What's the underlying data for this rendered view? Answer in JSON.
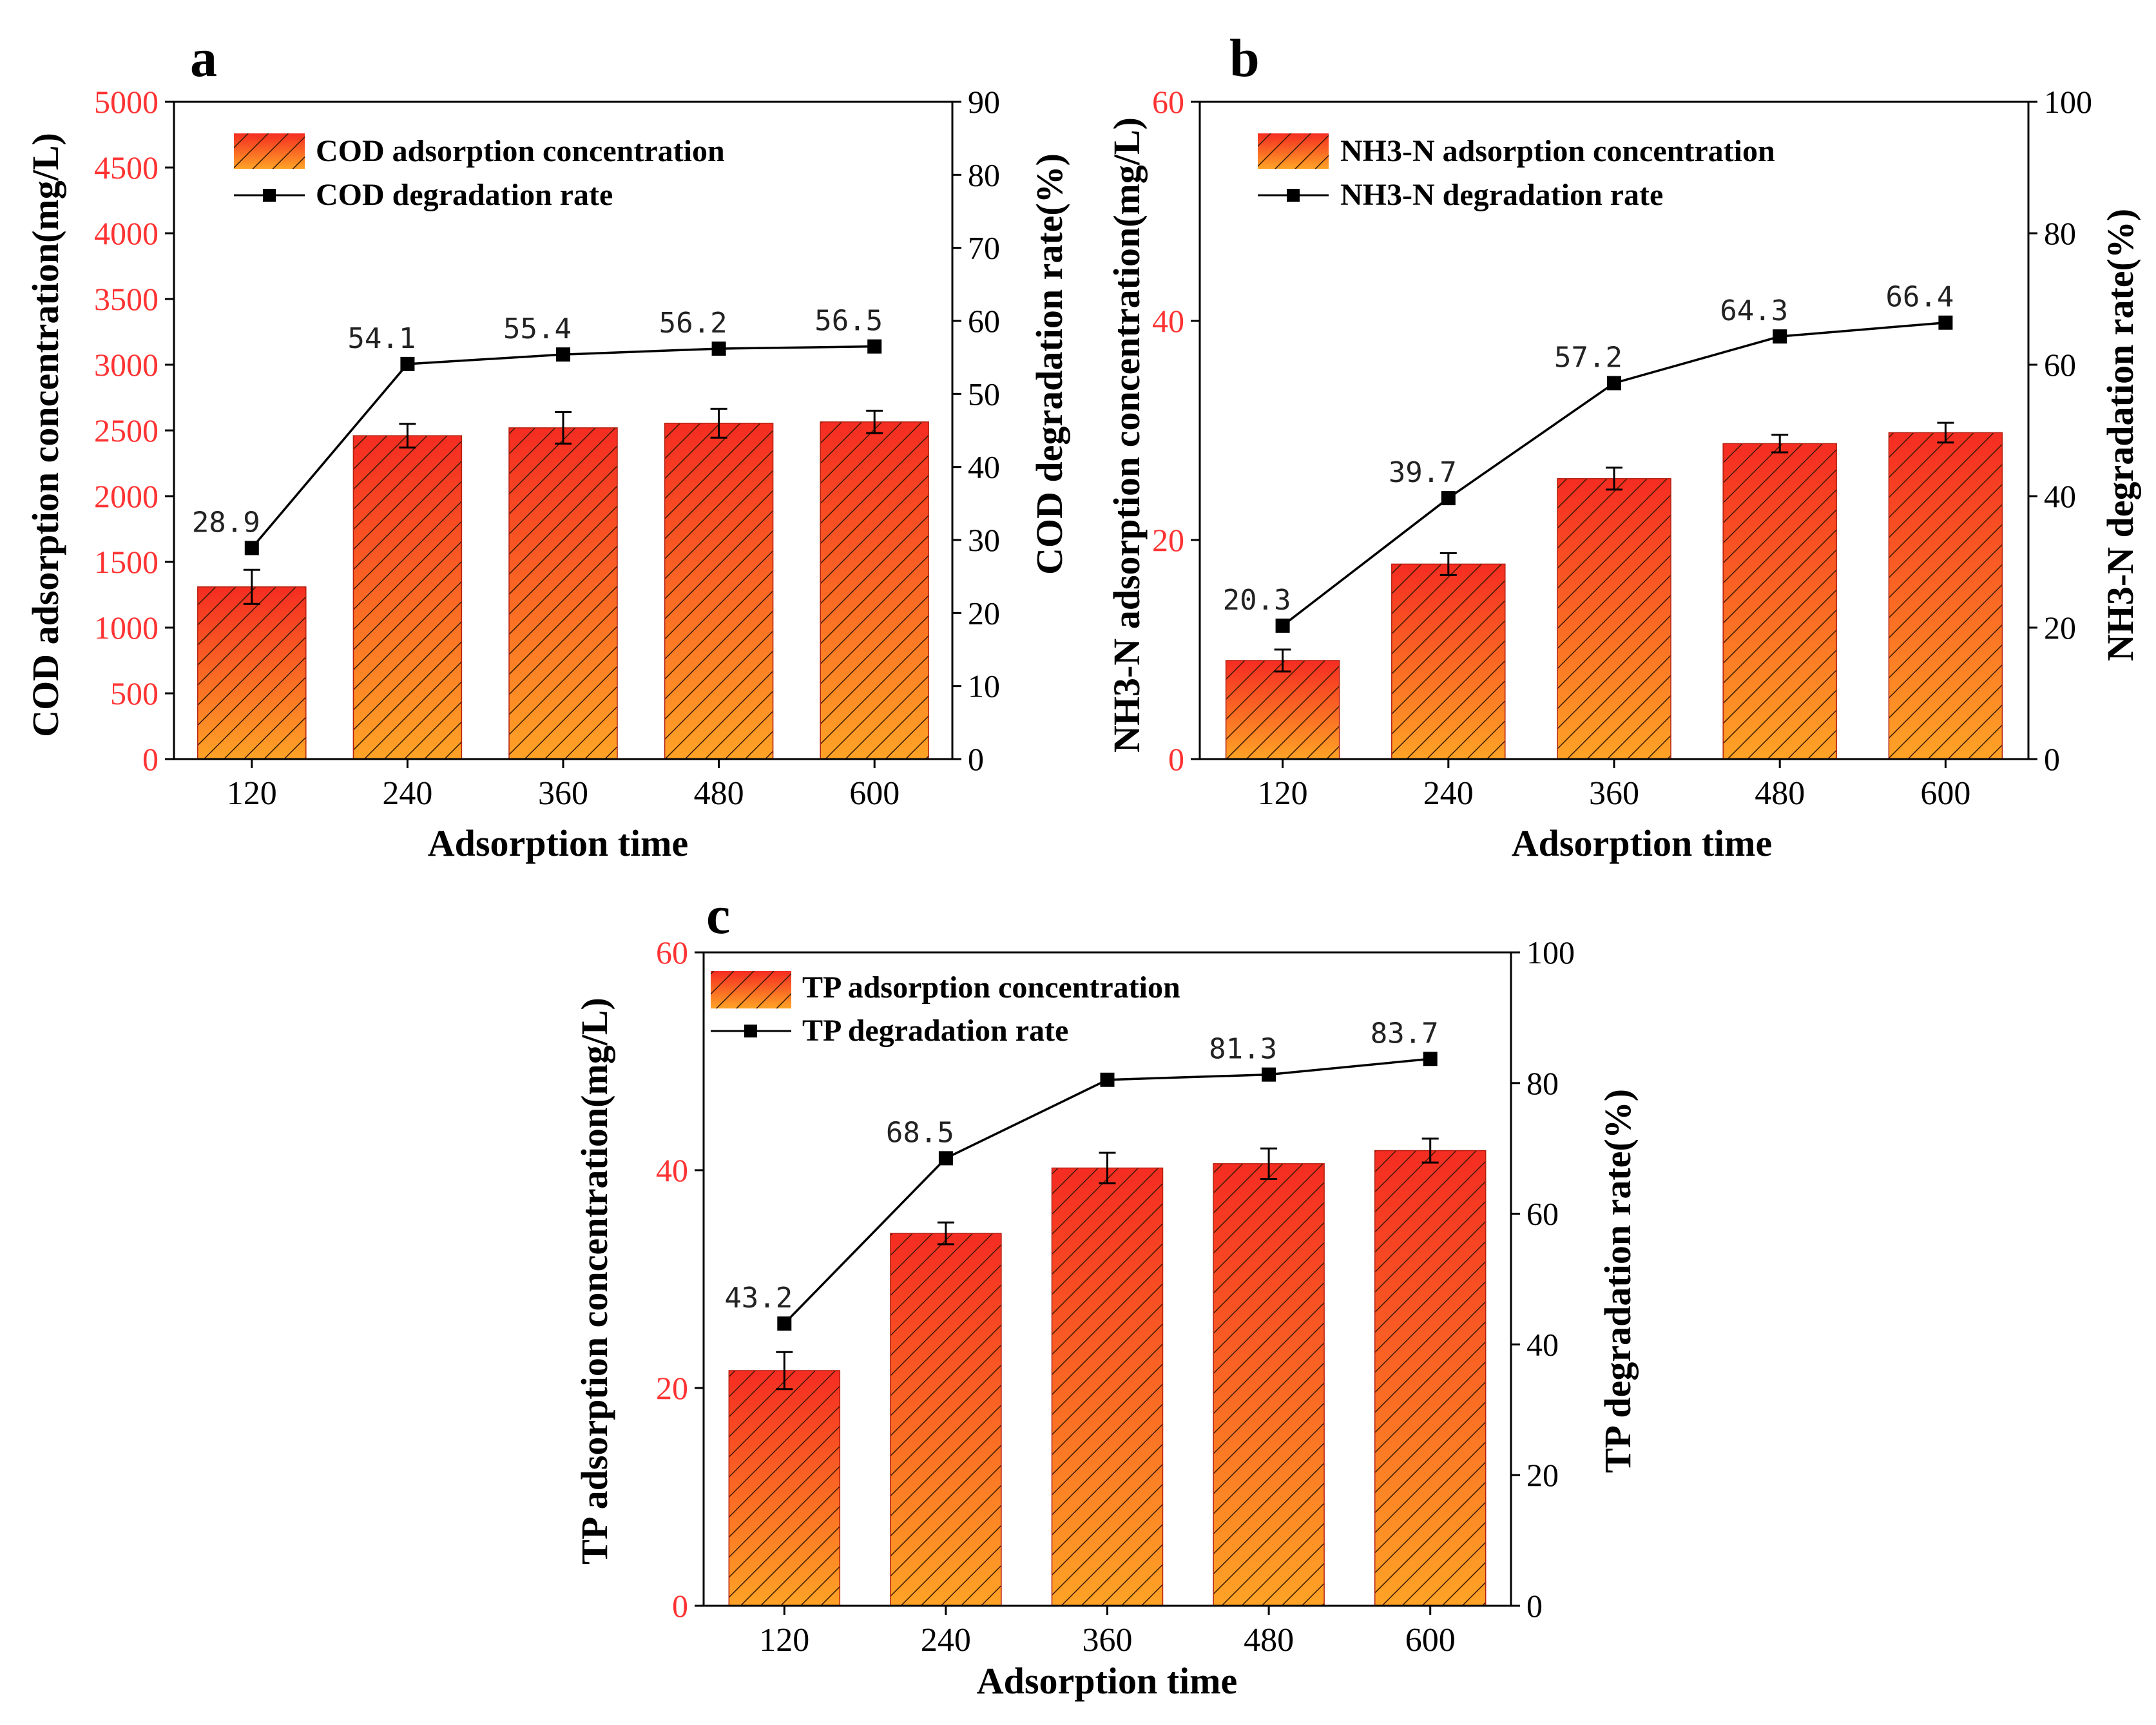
{
  "chart_data": [
    {
      "type": "bar",
      "panel_label": "a",
      "categories": [
        "120",
        "240",
        "360",
        "480",
        "600"
      ],
      "bar_series": {
        "name": "COD adsorption concentration",
        "values": [
          1310,
          2460,
          2520,
          2555,
          2565
        ],
        "errors": [
          130,
          90,
          120,
          110,
          85
        ]
      },
      "line_series": {
        "name": "COD degradation rate",
        "values": [
          28.9,
          54.1,
          55.4,
          56.2,
          56.5
        ],
        "labels": [
          "28.9",
          "54.1",
          "55.4",
          "56.2",
          "56.5"
        ]
      },
      "xlabel": "Adsorption time",
      "ylabel_left": "COD adsorption concentration(mg/L)",
      "ylabel_right": "COD degradation rate(%)",
      "ylim_left": [
        0,
        5000
      ],
      "yticks_left": [
        "0",
        "500",
        "1000",
        "1500",
        "2000",
        "2500",
        "3000",
        "3500",
        "4000",
        "4500",
        "5000"
      ],
      "ylim_right": [
        0,
        90
      ],
      "yticks_right": [
        "0",
        "10",
        "20",
        "30",
        "40",
        "50",
        "60",
        "70",
        "80",
        "90"
      ],
      "left_tick_color": "#ff3333",
      "grid": false,
      "legend_position": "top-left"
    },
    {
      "type": "bar",
      "panel_label": "b",
      "categories": [
        "120",
        "240",
        "360",
        "480",
        "600"
      ],
      "bar_series": {
        "name": "NH3-N adsorption concentration",
        "values": [
          9.0,
          17.8,
          25.6,
          28.8,
          29.8
        ],
        "errors": [
          1.0,
          1.0,
          1.0,
          0.8,
          0.9
        ]
      },
      "line_series": {
        "name": "NH3-N degradation rate",
        "values": [
          20.3,
          39.7,
          57.2,
          64.3,
          66.4
        ],
        "labels": [
          "20.3",
          "39.7",
          "57.2",
          "64.3",
          "66.4"
        ]
      },
      "xlabel": "Adsorption time",
      "ylabel_left": "NH3-N adsorption concentration(mg/L)",
      "ylabel_right": "NH3-N degradation rate(%)",
      "ylim_left": [
        0,
        60
      ],
      "yticks_left": [
        "0",
        "20",
        "40",
        "60"
      ],
      "ylim_right": [
        0,
        100
      ],
      "yticks_right": [
        "0",
        "20",
        "40",
        "60",
        "80",
        "100"
      ],
      "left_tick_color": "#ff3333",
      "grid": false,
      "legend_position": "top-left"
    },
    {
      "type": "bar",
      "panel_label": "c",
      "categories": [
        "120",
        "240",
        "360",
        "480",
        "600"
      ],
      "bar_series": {
        "name": "TP adsorption concentration",
        "values": [
          21.6,
          34.2,
          40.2,
          40.6,
          41.8
        ],
        "errors": [
          1.7,
          1.0,
          1.4,
          1.4,
          1.1
        ]
      },
      "line_series": {
        "name": "TP degradation rate",
        "values": [
          43.2,
          68.5,
          80.5,
          81.3,
          83.7
        ],
        "labels": [
          "43.2",
          "68.5",
          "",
          "81.3",
          "83.7"
        ]
      },
      "xlabel": "Adsorption time",
      "ylabel_left": "TP adsorption concentration(mg/L)",
      "ylabel_right": "TP degradation rate(%)",
      "ylim_left": [
        0,
        60
      ],
      "yticks_left": [
        "0",
        "20",
        "40",
        "60"
      ],
      "ylim_right": [
        0,
        100
      ],
      "yticks_right": [
        "0",
        "20",
        "40",
        "60",
        "80",
        "100"
      ],
      "left_tick_color": "#ff3333",
      "grid": false,
      "legend_position": "top-left"
    }
  ],
  "colors": {
    "bar_top": "#f52c22",
    "bar_bottom": "#ffa326",
    "hatch": "#3a1a00",
    "axis": "#000000",
    "line": "#000000"
  }
}
